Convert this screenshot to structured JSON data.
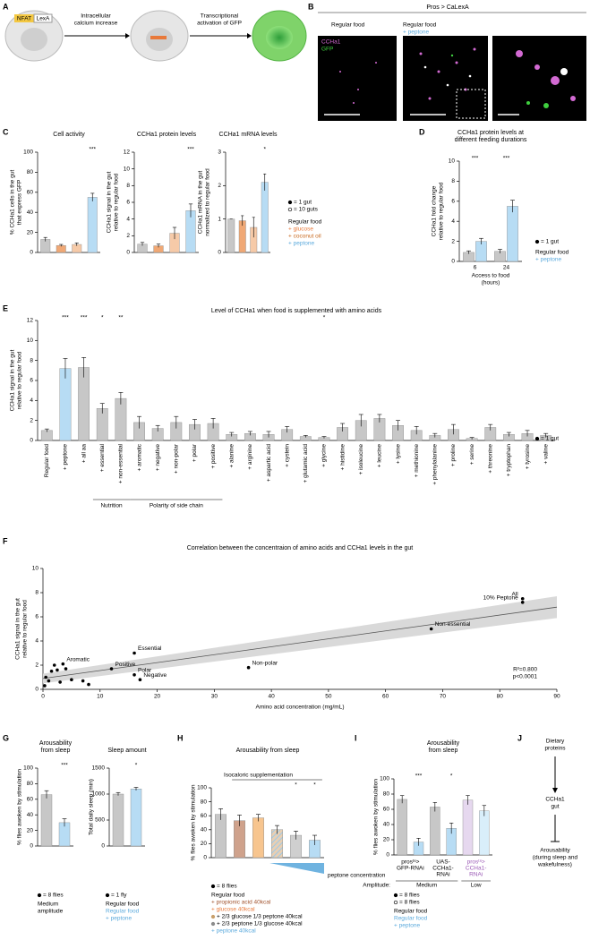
{
  "panel_labels": [
    "A",
    "B",
    "C",
    "D",
    "E",
    "F",
    "G",
    "H",
    "I",
    "J"
  ],
  "diagram_a": {
    "nfat": "NFAT",
    "lexa": "LexA",
    "step1": [
      "Intracellular",
      "calcium increase"
    ],
    "step2": [
      "Transcriptional",
      "activation of GFP"
    ]
  },
  "images_b": {
    "title": "Pros > CaLexA",
    "col1": "Regular food",
    "col2": [
      "Regular food",
      "+ peptone"
    ],
    "channel1": "CCHa1",
    "channel2": "GFP"
  },
  "chart_data": [
    {
      "type": "bar",
      "title": [
        "Cell activity"
      ],
      "ylabel": [
        "% CCHa1 cells in the gut",
        "that express GFP"
      ],
      "categories": [
        null,
        null,
        null,
        null
      ],
      "values": [
        13,
        7,
        8,
        55
      ],
      "errors": [
        2,
        1,
        1.5,
        4
      ],
      "colors": [
        "#c7c7c7",
        "#f0a875",
        "#f6caa8",
        "#b7dcf4"
      ],
      "significance": [
        null,
        null,
        null,
        "***"
      ],
      "ylim": [
        0,
        100
      ],
      "yticks": [
        0,
        20,
        40,
        60,
        80,
        100
      ]
    },
    {
      "type": "bar",
      "title": [
        "CCHa1 protein levels"
      ],
      "ylabel": [
        "CCHa1 signal in the gut",
        "relative to regular food"
      ],
      "categories": [
        null,
        null,
        null,
        null
      ],
      "values": [
        1,
        0.8,
        2.3,
        5
      ],
      "errors": [
        0.2,
        0.2,
        0.7,
        0.8
      ],
      "colors": [
        "#c7c7c7",
        "#f0a875",
        "#f6caa8",
        "#b7dcf4"
      ],
      "significance": [
        null,
        null,
        null,
        "***"
      ],
      "ylim": [
        0,
        12
      ],
      "yticks": [
        0,
        2,
        4,
        6,
        8,
        10,
        12
      ]
    },
    {
      "type": "bar",
      "title": [
        "CCHa1 mRNA levels"
      ],
      "ylabel": [
        "CCHa1 mRNA in the gut",
        "normalized to regular food"
      ],
      "categories": [
        null,
        null,
        null,
        null
      ],
      "values": [
        1,
        0.95,
        0.75,
        2.1
      ],
      "errors": [
        0,
        0.15,
        0.3,
        0.25
      ],
      "colors": [
        "#c7c7c7",
        "#f0a875",
        "#f6caa8",
        "#b7dcf4"
      ],
      "significance": [
        null,
        null,
        null,
        "*"
      ],
      "ylim": [
        0,
        3
      ],
      "yticks": [
        0,
        1,
        2,
        3
      ]
    },
    {
      "type": "bar",
      "title": [
        "CCHa1 protein levels at",
        "different feeding durations"
      ],
      "ylabel": [
        "CCHa1 fold change",
        "relative to regular food"
      ],
      "xlabel": [
        "Access to food",
        "(hours)"
      ],
      "categories": [
        "6",
        "24"
      ],
      "series": [
        {
          "name": "Regular food",
          "color": "#c7c7c7",
          "values": [
            0.9,
            1.0
          ],
          "errors": [
            0.15,
            0.2
          ]
        },
        {
          "name": "+ peptone",
          "color": "#b7dcf4",
          "values": [
            2.0,
            5.5
          ],
          "errors": [
            0.3,
            0.6
          ]
        }
      ],
      "significance": [
        "***",
        "***"
      ],
      "ylim": [
        0,
        10
      ],
      "yticks": [
        0,
        2,
        4,
        6,
        8,
        10
      ]
    },
    {
      "type": "bar",
      "title": [
        "Level of CCHa1 when food is supplemented with amino acids"
      ],
      "ylabel": [
        "CCHa1 signal in the gut",
        "relative to regular food"
      ],
      "categories": [
        "Regular food",
        "+ peptone",
        "+ all aa",
        "+ essential",
        "+ non-essential",
        "+ aromatic",
        "+ negative",
        "+ non-polar",
        "+ polar",
        "+ positive",
        "+ alanine",
        "+ arginine",
        "+ aspartic acid",
        "+ cystein",
        "+ glutamic acid",
        "+ glycine",
        "+ histidine",
        "+ isoleucine",
        "+ leucine",
        "+ lysine",
        "+ methionine",
        "+ phenylalanine",
        "+ proline",
        "+ serine",
        "+ threonine",
        "+ tryptophan",
        "+ tyrosine",
        "+ valine"
      ],
      "values": [
        1.0,
        7.2,
        7.3,
        3.2,
        4.2,
        1.8,
        1.2,
        1.8,
        1.6,
        1.7,
        0.6,
        0.7,
        0.6,
        1.1,
        0.4,
        0.3,
        1.3,
        2.0,
        2.2,
        1.5,
        1.0,
        0.5,
        1.1,
        0.2,
        1.3,
        0.6,
        0.7,
        0.5
      ],
      "errors": [
        0.15,
        1.0,
        1.0,
        0.5,
        0.6,
        0.6,
        0.3,
        0.6,
        0.5,
        0.5,
        0.2,
        0.2,
        0.3,
        0.3,
        0.1,
        0.1,
        0.4,
        0.6,
        0.4,
        0.5,
        0.4,
        0.2,
        0.5,
        0.1,
        0.3,
        0.2,
        0.3,
        0.2
      ],
      "colors": [
        "#c7c7c7",
        "#b7dcf4",
        "#c7c7c7",
        "#c7c7c7",
        "#c7c7c7",
        "#c7c7c7",
        "#c7c7c7",
        "#c7c7c7",
        "#c7c7c7",
        "#c7c7c7",
        "#c7c7c7",
        "#c7c7c7",
        "#c7c7c7",
        "#c7c7c7",
        "#c7c7c7",
        "#c7c7c7",
        "#c7c7c7",
        "#c7c7c7",
        "#c7c7c7",
        "#c7c7c7",
        "#c7c7c7",
        "#c7c7c7",
        "#c7c7c7",
        "#c7c7c7",
        "#c7c7c7",
        "#c7c7c7",
        "#c7c7c7",
        "#c7c7c7"
      ],
      "significance": [
        null,
        "***",
        "***",
        "*",
        "**",
        null,
        null,
        null,
        null,
        null,
        null,
        null,
        null,
        null,
        null,
        "*",
        null,
        null,
        null,
        null,
        null,
        null,
        null,
        null,
        null,
        null,
        null,
        null
      ],
      "group_labels": [
        "Nutrition",
        "Polarity of side chain"
      ],
      "ylim": [
        0,
        12
      ],
      "yticks": [
        0,
        2,
        4,
        6,
        8,
        10,
        12
      ]
    },
    {
      "type": "scatter",
      "title": [
        "Correlation between the concentraion of amino acids and CCHa1 levels in the gut"
      ],
      "ylabel": [
        "CCHa1 signal in the gut",
        "relative to regular food"
      ],
      "xlabel": [
        "Amino acid concentration (mg/mL)"
      ],
      "x": [
        84,
        84,
        68,
        16,
        3.5,
        12,
        16,
        17,
        36,
        0.5,
        1,
        1.5,
        2,
        2.5,
        3,
        4,
        5,
        7,
        8,
        0.3
      ],
      "y": [
        7.5,
        7.2,
        5.0,
        3.0,
        2.1,
        1.7,
        1.2,
        0.8,
        1.8,
        1.0,
        0.7,
        1.5,
        2.0,
        1.6,
        0.6,
        1.7,
        0.8,
        0.7,
        0.4,
        0.3
      ],
      "labels": [
        "All",
        "10% Peptone",
        "Non-essential",
        "Essential",
        "Aromatic",
        "Positive",
        "Polar",
        "Negative",
        "Non-polar",
        null,
        null,
        null,
        null,
        null,
        null,
        null,
        null,
        null,
        null,
        null
      ],
      "fit": {
        "x": [
          0,
          90
        ],
        "y": [
          0.9,
          6.8
        ],
        "y_lower": [
          0.5,
          5.9
        ],
        "y_upper": [
          1.3,
          7.7
        ]
      },
      "annotations": [
        "R²=0.800",
        "p<0.0001"
      ],
      "xlim": [
        0,
        90
      ],
      "xticks": [
        0,
        10,
        20,
        30,
        40,
        50,
        60,
        70,
        80,
        90
      ],
      "ylim": [
        0,
        10
      ],
      "yticks": [
        0,
        2,
        4,
        6,
        8,
        10
      ]
    },
    {
      "type": "bar",
      "title": [
        "Arousability",
        "from sleep"
      ],
      "ylabel": [
        "% flies awoken by stimulation"
      ],
      "categories": [
        null,
        null
      ],
      "values": [
        66,
        30
      ],
      "errors": [
        5,
        5
      ],
      "colors": [
        "#c7c7c7",
        "#b7dcf4"
      ],
      "significance": [
        null,
        "***"
      ],
      "ylim": [
        0,
        100
      ],
      "yticks": [
        0,
        20,
        40,
        60,
        80,
        100
      ]
    },
    {
      "type": "bar",
      "title": [
        "Sleep amount"
      ],
      "ylabel": [
        "Total daily sleep (min)"
      ],
      "categories": [
        null,
        null
      ],
      "values": [
        1000,
        1100
      ],
      "errors": [
        30,
        30
      ],
      "colors": [
        "#c7c7c7",
        "#b7dcf4"
      ],
      "significance": [
        null,
        "*"
      ],
      "ylim": [
        0,
        1500
      ],
      "yticks": [
        0,
        500,
        1000,
        1500
      ]
    },
    {
      "type": "bar",
      "title": [
        "Arousability from sleep"
      ],
      "subtitle": "Isocaloric supplementation",
      "ylabel": [
        "% flies awoken by stimulation"
      ],
      "categories": [
        null,
        null,
        null,
        null,
        null,
        null
      ],
      "values": [
        62,
        53,
        57,
        40,
        32,
        25
      ],
      "errors": [
        8,
        8,
        5,
        6,
        6,
        7
      ],
      "colors": [
        "#c7c7c7",
        "#cfa28c",
        "#f7c58f",
        "#e8cfb3",
        "#cfcfcf",
        "#b7dcf4"
      ],
      "hatch": [
        false,
        false,
        false,
        true,
        false,
        false
      ],
      "significance": [
        null,
        null,
        null,
        null,
        "*",
        "*"
      ],
      "note": "peptone concentration",
      "ylim": [
        0,
        100
      ],
      "yticks": [
        0,
        20,
        40,
        60,
        80,
        100
      ]
    },
    {
      "type": "bar",
      "title": [
        "Arousability",
        "from sleep"
      ],
      "ylabel": [
        "% flies awoken by stimulation"
      ],
      "categories": [
        null,
        null,
        null,
        null,
        null,
        null
      ],
      "values": [
        73,
        17,
        63,
        35,
        72,
        58
      ],
      "errors": [
        5,
        5,
        6,
        7,
        6,
        7
      ],
      "colors": [
        "#c7c7c7",
        "#b7dcf4",
        "#c7c7c7",
        "#b7dcf4",
        "#e6d8ef",
        "#d9eefa"
      ],
      "significance": [
        null,
        "***",
        null,
        "*",
        null,
        null
      ],
      "group_labels": [
        [
          "prosᵗˢ>",
          "GFP-RNAi"
        ],
        [
          "UAS-",
          "CCHa1-",
          "RNAi"
        ],
        [
          "prosᵗˢ>",
          "CCHa1-",
          "RNAi"
        ]
      ],
      "group_colors": [
        "#000000",
        "#000000",
        "#9b59b6"
      ],
      "amplitude": {
        "label": "Amplitude:",
        "levels": [
          "Medium",
          "Low"
        ]
      },
      "ylim": [
        0,
        100
      ],
      "yticks": [
        0,
        20,
        40,
        60,
        80,
        100
      ]
    }
  ],
  "legend_c": {
    "markers": [
      {
        "text": "= 1 gut",
        "marker": "dot"
      },
      {
        "text": "= 10 guts",
        "marker": "ring"
      }
    ],
    "groups": [
      {
        "text": "Regular food",
        "color": "#000000"
      },
      {
        "text": "+ glucose",
        "color": "#e8793a"
      },
      {
        "text": "+ coconut oil",
        "color": "#c8691f"
      },
      {
        "text": "+ peptone",
        "color": "#5aa9dc"
      }
    ]
  },
  "legend_d": {
    "markers": [
      {
        "text": "= 1 gut",
        "marker": "dot"
      }
    ],
    "groups": [
      {
        "text": "Regular food",
        "color": "#000000"
      },
      {
        "text": "+ peptone",
        "color": "#5aa9dc"
      }
    ]
  },
  "legend_e": {
    "markers": [
      {
        "text": "= 1 gut",
        "marker": "dot"
      }
    ]
  },
  "legend_g1": {
    "markers": [
      {
        "text": "= 8 flies",
        "marker": "dot"
      }
    ],
    "groups": [
      {
        "text": "Medium",
        "color": "#000000"
      },
      {
        "text": "amplitude",
        "color": "#000000"
      }
    ]
  },
  "legend_g2": {
    "markers": [
      {
        "text": "= 1 fly",
        "marker": "dot"
      }
    ],
    "groups": [
      {
        "text": "Regular food",
        "color": "#000000"
      },
      {
        "text": "Regular food",
        "color": "#5aa9dc"
      },
      {
        "text": "+ peptone",
        "color": "#5aa9dc"
      }
    ]
  },
  "legend_h": {
    "markers": [
      {
        "text": "= 8 flies",
        "marker": "dot"
      }
    ],
    "groups": [
      {
        "text": "Regular food",
        "color": "#000000"
      },
      {
        "text": "+ propionic acid 40kcal",
        "color": "#a0522d"
      },
      {
        "text": "+ glucose 40kcal",
        "color": "#e8793a"
      },
      {
        "text": "+ 2/3 glucose 1/3 peptone 40kcal",
        "color": "#000000",
        "marker": "dot",
        "marker_color": "#c9a06b"
      },
      {
        "text": "+ 2/3 peptone 1/3 glucose 40kcal",
        "color": "#000000",
        "marker": "dot",
        "marker_color": "#8c8c8c"
      },
      {
        "text": "+ peptone 40kcal",
        "color": "#5aa9dc"
      }
    ]
  },
  "legend_i": {
    "markers": [
      {
        "text": "= 8 flies",
        "marker": "dot"
      },
      {
        "text": "= 8 flies",
        "marker": "ring"
      }
    ],
    "groups": [
      {
        "text": "Regular food",
        "color": "#000000"
      },
      {
        "text": "Regular food",
        "color": "#5aa9dc"
      },
      {
        "text": "+ peptone",
        "color": "#5aa9dc"
      }
    ]
  },
  "diagram_j": {
    "top": [
      "Dietary",
      "proteins"
    ],
    "middle": [
      "CCHa1",
      "gut"
    ],
    "bottom": [
      "Arousability",
      "(during sleep and",
      "wakefulness)"
    ]
  }
}
